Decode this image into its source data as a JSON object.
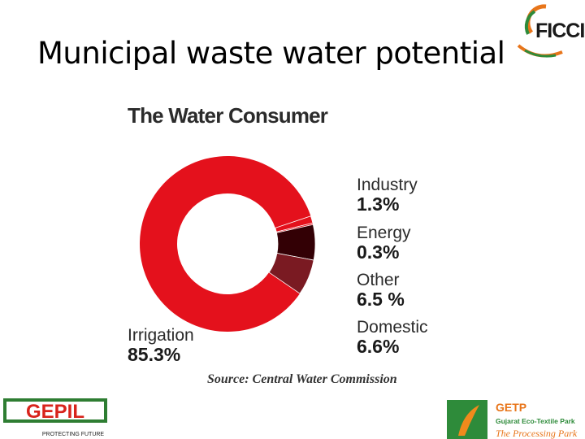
{
  "slide": {
    "title": "Municipal waste water potential"
  },
  "logos": {
    "ficci": "FICCI",
    "gepil_name": "GEPIL",
    "gepil_tagline": "PROTECTING FUTURE",
    "getp_name": "GETP",
    "getp_subtitle": "Gujarat Eco-Textile Park",
    "getp_tagline": "The Processing Park"
  },
  "chart_data": {
    "type": "pie",
    "title": "The Water Consumer",
    "source": "Source: Central Water Commission",
    "slices": [
      {
        "name": "Irrigation",
        "label": "85.3%",
        "value": 85.3,
        "color": "#e4111c"
      },
      {
        "name": "Industry",
        "label": "1.3%",
        "value": 1.3,
        "color": "#e4111c"
      },
      {
        "name": "Energy",
        "label": "0.3%",
        "value": 0.3,
        "color": "#e4111c"
      },
      {
        "name": "Other",
        "label": "6.5 %",
        "value": 6.5,
        "color": "#330005"
      },
      {
        "name": "Domestic",
        "label": "6.6%",
        "value": 6.6,
        "color": "#7a1a22"
      }
    ]
  }
}
